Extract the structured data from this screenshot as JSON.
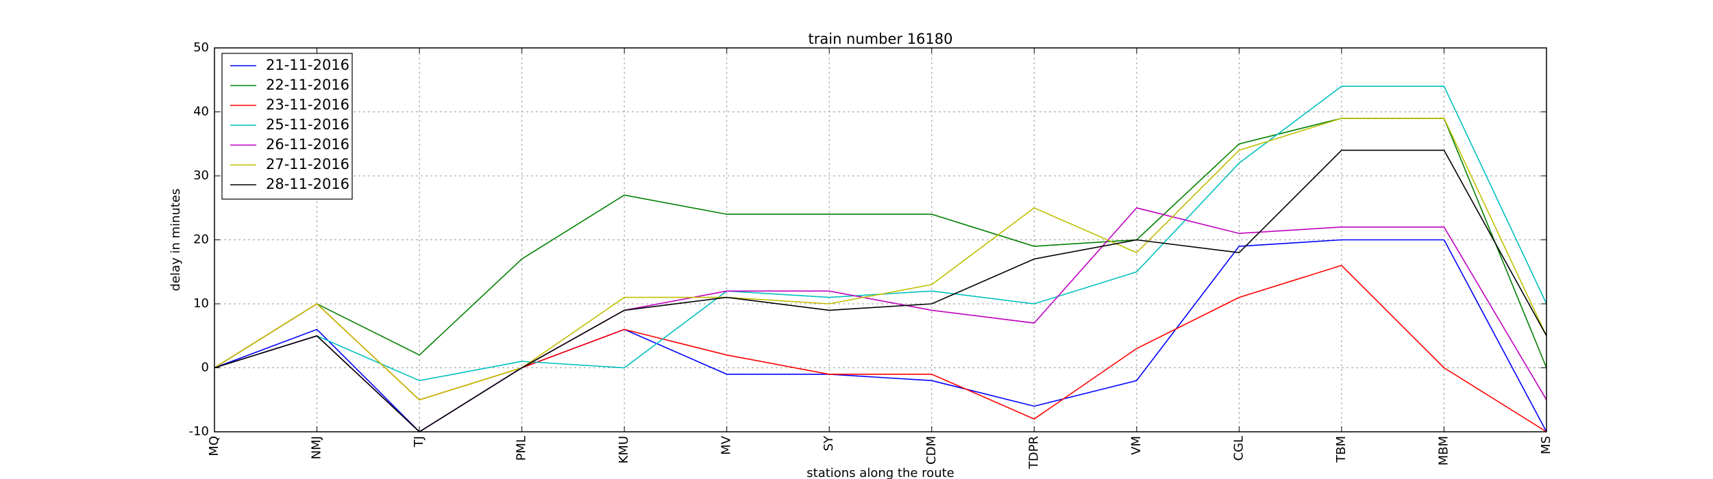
{
  "chart_data": {
    "type": "line",
    "title": "train number 16180",
    "xlabel": "stations along the route",
    "ylabel": "delay in minutes",
    "categories": [
      "MQ",
      "NMJ",
      "TJ",
      "PML",
      "KMU",
      "MV",
      "SY",
      "CDM",
      "TDPR",
      "VM",
      "CGL",
      "TBM",
      "MBM",
      "MS"
    ],
    "ylim": [
      -10,
      50
    ],
    "yticks": [
      "-10",
      "0",
      "10",
      "20",
      "30",
      "40",
      "50"
    ],
    "grid": true,
    "legend_position": "upper-left",
    "series": [
      {
        "name": "21-11-2016",
        "color": "#0000ff",
        "values": [
          0,
          6,
          -10,
          0,
          6,
          -1,
          -1,
          -2,
          -6,
          -2,
          19,
          20,
          20,
          -10
        ]
      },
      {
        "name": "22-11-2016",
        "color": "#008000",
        "values": [
          0,
          10,
          2,
          17,
          27,
          24,
          24,
          24,
          19,
          20,
          35,
          39,
          39,
          0
        ]
      },
      {
        "name": "23-11-2016",
        "color": "#ff0000",
        "values": [
          0,
          10,
          -5,
          0,
          6,
          2,
          -1,
          -1,
          -8,
          3,
          11,
          16,
          0,
          -10
        ]
      },
      {
        "name": "25-11-2016",
        "color": "#00bfbf",
        "values": [
          0,
          5,
          -2,
          1,
          0,
          12,
          11,
          12,
          10,
          15,
          32,
          44,
          44,
          10
        ]
      },
      {
        "name": "26-11-2016",
        "color": "#bf00bf",
        "values": [
          0,
          5,
          -10,
          0,
          9,
          12,
          12,
          9,
          7,
          25,
          21,
          22,
          22,
          -5
        ]
      },
      {
        "name": "27-11-2016",
        "color": "#bfbf00",
        "values": [
          0,
          10,
          -5,
          0,
          11,
          11,
          10,
          13,
          25,
          18,
          34,
          39,
          39,
          5
        ]
      },
      {
        "name": "28-11-2016",
        "color": "#000000",
        "values": [
          0,
          5,
          -10,
          0,
          9,
          11,
          9,
          10,
          17,
          20,
          18,
          34,
          34,
          5
        ]
      }
    ]
  }
}
